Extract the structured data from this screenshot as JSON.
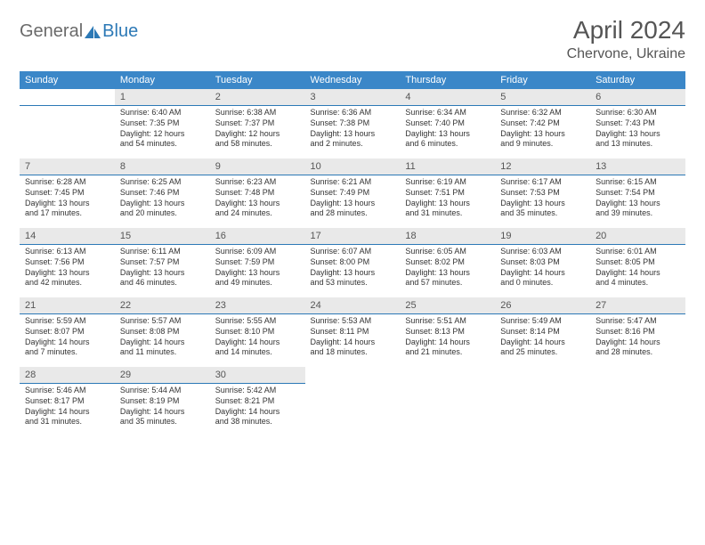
{
  "logo": {
    "part1": "General",
    "part2": "Blue"
  },
  "title": "April 2024",
  "location": "Chervone, Ukraine",
  "colors": {
    "header_bg": "#3b87c8",
    "header_text": "#ffffff",
    "daynum_bg": "#e9e9e9",
    "daynum_border": "#2c79b6",
    "body_text": "#333333",
    "title_text": "#555555"
  },
  "weekdays": [
    "Sunday",
    "Monday",
    "Tuesday",
    "Wednesday",
    "Thursday",
    "Friday",
    "Saturday"
  ],
  "weeks": [
    [
      null,
      {
        "n": "1",
        "sr": "Sunrise: 6:40 AM",
        "ss": "Sunset: 7:35 PM",
        "d1": "Daylight: 12 hours",
        "d2": "and 54 minutes."
      },
      {
        "n": "2",
        "sr": "Sunrise: 6:38 AM",
        "ss": "Sunset: 7:37 PM",
        "d1": "Daylight: 12 hours",
        "d2": "and 58 minutes."
      },
      {
        "n": "3",
        "sr": "Sunrise: 6:36 AM",
        "ss": "Sunset: 7:38 PM",
        "d1": "Daylight: 13 hours",
        "d2": "and 2 minutes."
      },
      {
        "n": "4",
        "sr": "Sunrise: 6:34 AM",
        "ss": "Sunset: 7:40 PM",
        "d1": "Daylight: 13 hours",
        "d2": "and 6 minutes."
      },
      {
        "n": "5",
        "sr": "Sunrise: 6:32 AM",
        "ss": "Sunset: 7:42 PM",
        "d1": "Daylight: 13 hours",
        "d2": "and 9 minutes."
      },
      {
        "n": "6",
        "sr": "Sunrise: 6:30 AM",
        "ss": "Sunset: 7:43 PM",
        "d1": "Daylight: 13 hours",
        "d2": "and 13 minutes."
      }
    ],
    [
      {
        "n": "7",
        "sr": "Sunrise: 6:28 AM",
        "ss": "Sunset: 7:45 PM",
        "d1": "Daylight: 13 hours",
        "d2": "and 17 minutes."
      },
      {
        "n": "8",
        "sr": "Sunrise: 6:25 AM",
        "ss": "Sunset: 7:46 PM",
        "d1": "Daylight: 13 hours",
        "d2": "and 20 minutes."
      },
      {
        "n": "9",
        "sr": "Sunrise: 6:23 AM",
        "ss": "Sunset: 7:48 PM",
        "d1": "Daylight: 13 hours",
        "d2": "and 24 minutes."
      },
      {
        "n": "10",
        "sr": "Sunrise: 6:21 AM",
        "ss": "Sunset: 7:49 PM",
        "d1": "Daylight: 13 hours",
        "d2": "and 28 minutes."
      },
      {
        "n": "11",
        "sr": "Sunrise: 6:19 AM",
        "ss": "Sunset: 7:51 PM",
        "d1": "Daylight: 13 hours",
        "d2": "and 31 minutes."
      },
      {
        "n": "12",
        "sr": "Sunrise: 6:17 AM",
        "ss": "Sunset: 7:53 PM",
        "d1": "Daylight: 13 hours",
        "d2": "and 35 minutes."
      },
      {
        "n": "13",
        "sr": "Sunrise: 6:15 AM",
        "ss": "Sunset: 7:54 PM",
        "d1": "Daylight: 13 hours",
        "d2": "and 39 minutes."
      }
    ],
    [
      {
        "n": "14",
        "sr": "Sunrise: 6:13 AM",
        "ss": "Sunset: 7:56 PM",
        "d1": "Daylight: 13 hours",
        "d2": "and 42 minutes."
      },
      {
        "n": "15",
        "sr": "Sunrise: 6:11 AM",
        "ss": "Sunset: 7:57 PM",
        "d1": "Daylight: 13 hours",
        "d2": "and 46 minutes."
      },
      {
        "n": "16",
        "sr": "Sunrise: 6:09 AM",
        "ss": "Sunset: 7:59 PM",
        "d1": "Daylight: 13 hours",
        "d2": "and 49 minutes."
      },
      {
        "n": "17",
        "sr": "Sunrise: 6:07 AM",
        "ss": "Sunset: 8:00 PM",
        "d1": "Daylight: 13 hours",
        "d2": "and 53 minutes."
      },
      {
        "n": "18",
        "sr": "Sunrise: 6:05 AM",
        "ss": "Sunset: 8:02 PM",
        "d1": "Daylight: 13 hours",
        "d2": "and 57 minutes."
      },
      {
        "n": "19",
        "sr": "Sunrise: 6:03 AM",
        "ss": "Sunset: 8:03 PM",
        "d1": "Daylight: 14 hours",
        "d2": "and 0 minutes."
      },
      {
        "n": "20",
        "sr": "Sunrise: 6:01 AM",
        "ss": "Sunset: 8:05 PM",
        "d1": "Daylight: 14 hours",
        "d2": "and 4 minutes."
      }
    ],
    [
      {
        "n": "21",
        "sr": "Sunrise: 5:59 AM",
        "ss": "Sunset: 8:07 PM",
        "d1": "Daylight: 14 hours",
        "d2": "and 7 minutes."
      },
      {
        "n": "22",
        "sr": "Sunrise: 5:57 AM",
        "ss": "Sunset: 8:08 PM",
        "d1": "Daylight: 14 hours",
        "d2": "and 11 minutes."
      },
      {
        "n": "23",
        "sr": "Sunrise: 5:55 AM",
        "ss": "Sunset: 8:10 PM",
        "d1": "Daylight: 14 hours",
        "d2": "and 14 minutes."
      },
      {
        "n": "24",
        "sr": "Sunrise: 5:53 AM",
        "ss": "Sunset: 8:11 PM",
        "d1": "Daylight: 14 hours",
        "d2": "and 18 minutes."
      },
      {
        "n": "25",
        "sr": "Sunrise: 5:51 AM",
        "ss": "Sunset: 8:13 PM",
        "d1": "Daylight: 14 hours",
        "d2": "and 21 minutes."
      },
      {
        "n": "26",
        "sr": "Sunrise: 5:49 AM",
        "ss": "Sunset: 8:14 PM",
        "d1": "Daylight: 14 hours",
        "d2": "and 25 minutes."
      },
      {
        "n": "27",
        "sr": "Sunrise: 5:47 AM",
        "ss": "Sunset: 8:16 PM",
        "d1": "Daylight: 14 hours",
        "d2": "and 28 minutes."
      }
    ],
    [
      {
        "n": "28",
        "sr": "Sunrise: 5:46 AM",
        "ss": "Sunset: 8:17 PM",
        "d1": "Daylight: 14 hours",
        "d2": "and 31 minutes."
      },
      {
        "n": "29",
        "sr": "Sunrise: 5:44 AM",
        "ss": "Sunset: 8:19 PM",
        "d1": "Daylight: 14 hours",
        "d2": "and 35 minutes."
      },
      {
        "n": "30",
        "sr": "Sunrise: 5:42 AM",
        "ss": "Sunset: 8:21 PM",
        "d1": "Daylight: 14 hours",
        "d2": "and 38 minutes."
      },
      null,
      null,
      null,
      null
    ]
  ]
}
